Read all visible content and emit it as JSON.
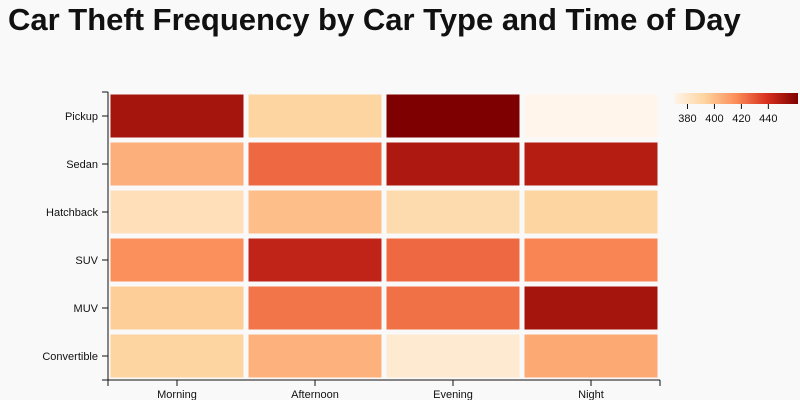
{
  "chart_data": {
    "type": "heatmap",
    "title": "Car Theft Frequency by Car Type and Time of Day",
    "xlabel": "",
    "ylabel": "",
    "x_categories": [
      "Morning",
      "Afternoon",
      "Evening",
      "Night"
    ],
    "y_categories": [
      "Pickup",
      "Sedan",
      "Hatchback",
      "SUV",
      "MUV",
      "Convertible"
    ],
    "values": [
      [
        452,
        392,
        462,
        370
      ],
      [
        405,
        425,
        450,
        448
      ],
      [
        385,
        400,
        388,
        392
      ],
      [
        415,
        445,
        425,
        418
      ],
      [
        395,
        422,
        423,
        452
      ],
      [
        392,
        404,
        378,
        407
      ]
    ],
    "colorbar": {
      "domain": [
        370,
        462
      ],
      "ticks": [
        380,
        400,
        420,
        440
      ],
      "colors": [
        "#fff5eb",
        "#fdd49e",
        "#fc8d59",
        "#d7301f",
        "#7f0000"
      ],
      "placement": "top-right"
    },
    "grid": false,
    "legend_placement": "top-right"
  }
}
